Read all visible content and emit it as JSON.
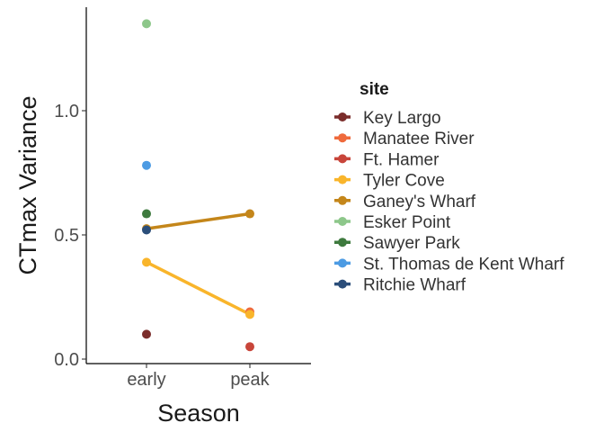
{
  "chart_data": {
    "type": "line",
    "xlabel": "Season",
    "ylabel": "CTmax Variance",
    "categories": [
      "early",
      "peak"
    ],
    "ylim": [
      -0.02,
      1.4
    ],
    "yticks": [
      0.0,
      0.5,
      1.0
    ],
    "ytick_labels": [
      "0.0",
      "0.5",
      "1.0"
    ],
    "grid": false,
    "legend": {
      "title": "site",
      "placement": "right",
      "entries": [
        "Key Largo",
        "Manatee River",
        "Ft. Hamer",
        "Tyler Cove",
        "Ganey's Wharf",
        "Esker Point",
        "Sawyer Park",
        "St. Thomas de Kent Wharf",
        "Ritchie Wharf"
      ]
    },
    "series": [
      {
        "name": "Key Largo",
        "color": "#7b2d2b",
        "values": [
          0.1,
          null
        ]
      },
      {
        "name": "Manatee River",
        "color": "#ef6a3c",
        "values": [
          null,
          0.19
        ]
      },
      {
        "name": "Ft. Hamer",
        "color": "#c8453a",
        "values": [
          null,
          0.05
        ]
      },
      {
        "name": "Tyler Cove",
        "color": "#f9b52b",
        "values": [
          0.39,
          0.18
        ]
      },
      {
        "name": "Ganey's Wharf",
        "color": "#c4861a",
        "values": [
          0.525,
          0.585
        ]
      },
      {
        "name": "Esker Point",
        "color": "#8dc78a",
        "values": [
          1.35,
          null
        ]
      },
      {
        "name": "Sawyer Park",
        "color": "#3e7a3e",
        "values": [
          0.585,
          null
        ]
      },
      {
        "name": "St. Thomas de Kent Wharf",
        "color": "#4c9be3",
        "values": [
          0.78,
          null
        ]
      },
      {
        "name": "Ritchie Wharf",
        "color": "#2b4e7a",
        "values": [
          0.52,
          null
        ]
      }
    ]
  }
}
